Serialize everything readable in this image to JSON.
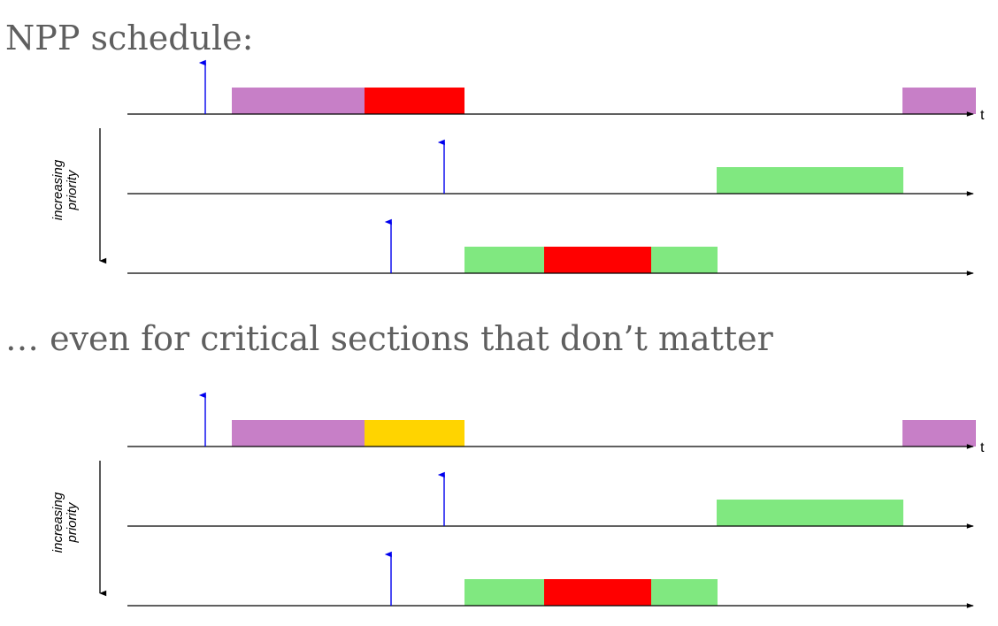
{
  "title_top": "NPP schedule:",
  "title_bottom": "… even for critical sections that don’t matter",
  "axis_label": "t",
  "priority_label_line1": "increasing",
  "priority_label_line2": "priority",
  "colors": {
    "low_task": "#c77fc7",
    "medium_task": "#80e880",
    "critical_section": "#ff0000",
    "irrelevant_critical_section": "#ffd400",
    "release_arrow": "#0000ee",
    "axis": "#000000"
  },
  "diagrams": [
    {
      "name": "npp-schedule",
      "rows": [
        {
          "release": 88,
          "blocks": [
            {
              "start": 118,
              "end": 268,
              "kind": "low_task"
            },
            {
              "start": 268,
              "end": 381,
              "kind": "critical_section"
            },
            {
              "start": 876,
              "end": 959,
              "kind": "low_task"
            }
          ]
        },
        {
          "release": 358,
          "blocks": [
            {
              "start": 666,
              "end": 877,
              "kind": "medium_task"
            }
          ]
        },
        {
          "release": 298,
          "blocks": [
            {
              "start": 381,
              "end": 471,
              "kind": "medium_task"
            },
            {
              "start": 471,
              "end": 592,
              "kind": "critical_section"
            },
            {
              "start": 592,
              "end": 667,
              "kind": "medium_task"
            }
          ]
        }
      ]
    },
    {
      "name": "irrelevant-critical-section-schedule",
      "rows": [
        {
          "release": 88,
          "blocks": [
            {
              "start": 118,
              "end": 268,
              "kind": "low_task"
            },
            {
              "start": 268,
              "end": 381,
              "kind": "irrelevant_critical_section"
            },
            {
              "start": 876,
              "end": 959,
              "kind": "low_task"
            }
          ]
        },
        {
          "release": 358,
          "blocks": [
            {
              "start": 666,
              "end": 877,
              "kind": "medium_task"
            }
          ]
        },
        {
          "release": 298,
          "blocks": [
            {
              "start": 381,
              "end": 471,
              "kind": "medium_task"
            },
            {
              "start": 471,
              "end": 592,
              "kind": "critical_section"
            },
            {
              "start": 592,
              "end": 667,
              "kind": "medium_task"
            }
          ]
        }
      ]
    }
  ]
}
